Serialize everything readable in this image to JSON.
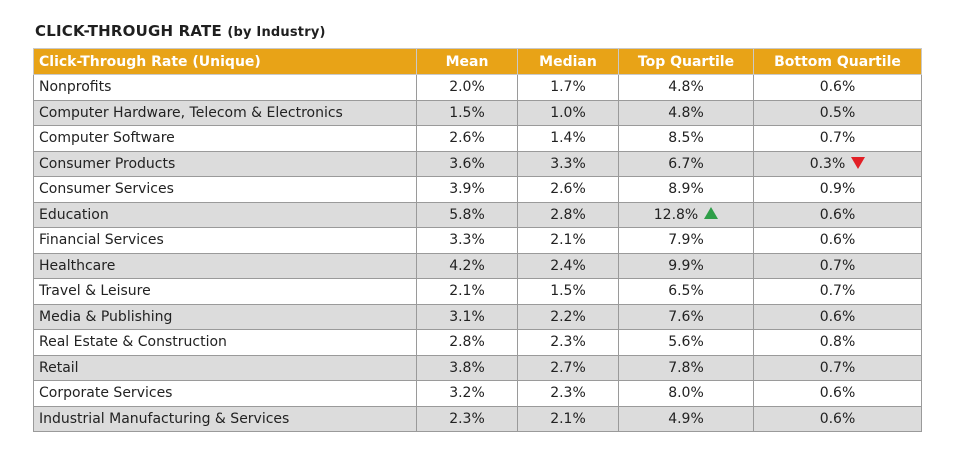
{
  "title": {
    "main": "CLICK-THROUGH RATE",
    "sub": "(by Industry)"
  },
  "colors": {
    "header_bg": "#e8a317",
    "row_alt": "#dcdcdc",
    "down_arrow": "#e21f26",
    "up_arrow": "#2e9e48"
  },
  "table": {
    "headers": {
      "industry": "Click-Through Rate (Unique)",
      "mean": "Mean",
      "median": "Median",
      "top": "Top Quartile",
      "bottom": "Bottom Quartile"
    },
    "rows": [
      {
        "industry": "Nonprofits",
        "mean": "2.0%",
        "median": "1.7%",
        "top": "4.8%",
        "bottom": "0.6%"
      },
      {
        "industry": "Computer Hardware, Telecom & Electronics",
        "mean": "1.5%",
        "median": "1.0%",
        "top": "4.8%",
        "bottom": "0.5%"
      },
      {
        "industry": "Computer Software",
        "mean": "2.6%",
        "median": "1.4%",
        "top": "8.5%",
        "bottom": "0.7%"
      },
      {
        "industry": "Consumer Products",
        "mean": "3.6%",
        "median": "3.3%",
        "top": "6.7%",
        "bottom": "0.3%",
        "bottom_marker": "down-arrow-icon"
      },
      {
        "industry": "Consumer Services",
        "mean": "3.9%",
        "median": "2.6%",
        "top": "8.9%",
        "bottom": "0.9%"
      },
      {
        "industry": "Education",
        "mean": "5.8%",
        "median": "2.8%",
        "top": "12.8%",
        "bottom": "0.6%",
        "top_marker": "up-arrow-icon"
      },
      {
        "industry": "Financial Services",
        "mean": "3.3%",
        "median": "2.1%",
        "top": "7.9%",
        "bottom": "0.6%"
      },
      {
        "industry": "Healthcare",
        "mean": "4.2%",
        "median": "2.4%",
        "top": "9.9%",
        "bottom": "0.7%"
      },
      {
        "industry": "Travel & Leisure",
        "mean": "2.1%",
        "median": "1.5%",
        "top": "6.5%",
        "bottom": "0.7%"
      },
      {
        "industry": "Media & Publishing",
        "mean": "3.1%",
        "median": "2.2%",
        "top": "7.6%",
        "bottom": "0.6%"
      },
      {
        "industry": "Real Estate & Construction",
        "mean": "2.8%",
        "median": "2.3%",
        "top": "5.6%",
        "bottom": "0.8%"
      },
      {
        "industry": "Retail",
        "mean": "3.8%",
        "median": "2.7%",
        "top": "7.8%",
        "bottom": "0.7%"
      },
      {
        "industry": "Corporate Services",
        "mean": "3.2%",
        "median": "2.3%",
        "top": "8.0%",
        "bottom": "0.6%"
      },
      {
        "industry": "Industrial Manufacturing & Services",
        "mean": "2.3%",
        "median": "2.1%",
        "top": "4.9%",
        "bottom": "0.6%"
      }
    ]
  }
}
